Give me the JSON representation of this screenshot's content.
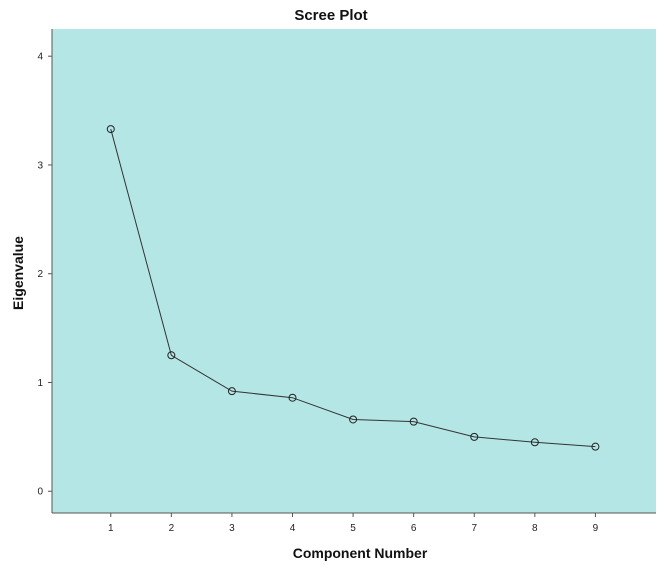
{
  "chart_data": {
    "type": "line",
    "title": "Scree Plot",
    "xlabel": "Component Number",
    "ylabel": "Eigenvalue",
    "x": [
      1,
      2,
      3,
      4,
      5,
      6,
      7,
      8,
      9
    ],
    "series": [
      {
        "values": [
          3.33,
          1.25,
          0.92,
          0.86,
          0.66,
          0.64,
          0.5,
          0.45,
          0.41
        ]
      }
    ],
    "xticks": [
      1,
      2,
      3,
      4,
      5,
      6,
      7,
      8,
      9
    ],
    "yticks": [
      0,
      1,
      2,
      3,
      4
    ],
    "xlim": [
      0.03,
      10.0
    ],
    "ylim": [
      -0.2,
      4.25
    ],
    "grid": false,
    "legend": "none",
    "marker": "open-circle"
  },
  "colors": {
    "plot_background": "#b4e6e6",
    "line": "#333333",
    "marker": "#222222"
  }
}
